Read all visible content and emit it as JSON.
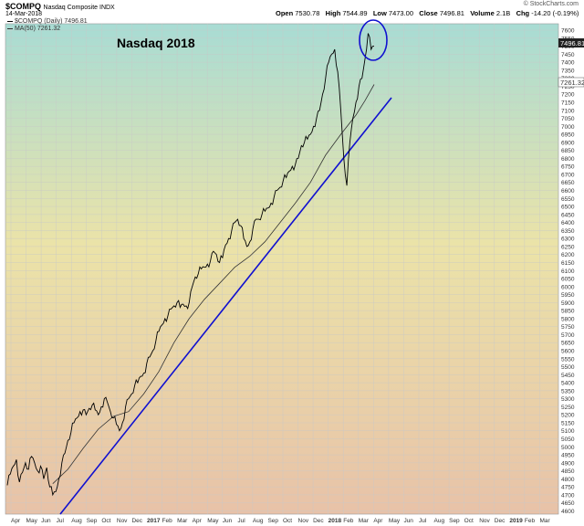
{
  "header": {
    "symbol": "$COMPQ",
    "name": "Nasdaq Composite INDX",
    "date": "14-Mar-2018",
    "open_label": "Open",
    "open": "7530.78",
    "high_label": "High",
    "high": "7544.89",
    "low_label": "Low",
    "low": "7473.00",
    "close_label": "Close",
    "close": "7496.81",
    "volume_label": "Volume",
    "volume": "2.1B",
    "chg_label": "Chg",
    "chg": "-14.20 (-0.19%)",
    "watermark": "© StockCharts.com"
  },
  "legend": {
    "price": "$COMPQ (Daily) 7496.81",
    "ma": "MA(50) 7261.32"
  },
  "annotation": "Nasdaq 2018",
  "price_tags": {
    "close": "7496.81",
    "ma": "7261.32"
  },
  "colors": {
    "price": "#000000",
    "ma": "#333333",
    "trendline": "#1010d0",
    "circle": "#1010d0",
    "bg_top": "#a8dcd4",
    "bg_mid": "#ebe3a8",
    "bg_bottom": "#e8c2a8"
  },
  "chart_data": {
    "type": "line",
    "y_ticks": [
      4600,
      4650,
      4700,
      4750,
      4800,
      4850,
      4900,
      4950,
      5000,
      5050,
      5100,
      5150,
      5200,
      5250,
      5300,
      5350,
      5400,
      5450,
      5500,
      5550,
      5600,
      5650,
      5700,
      5750,
      5800,
      5850,
      5900,
      5950,
      6000,
      6050,
      6100,
      6150,
      6200,
      6250,
      6300,
      6350,
      6400,
      6450,
      6500,
      6550,
      6600,
      6650,
      6700,
      6750,
      6800,
      6850,
      6900,
      6950,
      7000,
      7050,
      7100,
      7150,
      7200,
      7250,
      7300,
      7350,
      7400,
      7450,
      7500,
      7550,
      7600
    ],
    "ylim": [
      4580,
      7640
    ],
    "x_labels": [
      "Apr",
      "May",
      "Jun",
      "Jul",
      "Aug",
      "Sep",
      "Oct",
      "Nov",
      "Dec",
      "2017",
      "Feb",
      "Mar",
      "Apr",
      "May",
      "Jun",
      "Jul",
      "Aug",
      "Sep",
      "Oct",
      "Nov",
      "Dec",
      "2018",
      "Feb",
      "Mar",
      "Apr",
      "May",
      "Jun",
      "Jul",
      "Aug",
      "Sep",
      "Oct",
      "Nov",
      "Dec",
      "2019",
      "Feb",
      "Mar"
    ],
    "x_bold": [
      "2017",
      "2018",
      "2019"
    ],
    "price_series": [
      [
        0,
        4760
      ],
      [
        2,
        4830
      ],
      [
        4,
        4880
      ],
      [
        6,
        4920
      ],
      [
        8,
        4780
      ],
      [
        10,
        4840
      ],
      [
        12,
        4900
      ],
      [
        14,
        4860
      ],
      [
        16,
        4940
      ],
      [
        18,
        4900
      ],
      [
        20,
        4850
      ],
      [
        22,
        4880
      ],
      [
        24,
        4800
      ],
      [
        26,
        4870
      ],
      [
        28,
        4750
      ],
      [
        30,
        4700
      ],
      [
        32,
        4720
      ],
      [
        34,
        4800
      ],
      [
        36,
        4900
      ],
      [
        38,
        4960
      ],
      [
        40,
        5040
      ],
      [
        42,
        5090
      ],
      [
        44,
        5150
      ],
      [
        46,
        5180
      ],
      [
        48,
        5220
      ],
      [
        50,
        5230
      ],
      [
        52,
        5200
      ],
      [
        54,
        5240
      ],
      [
        56,
        5260
      ],
      [
        58,
        5230
      ],
      [
        60,
        5200
      ],
      [
        62,
        5250
      ],
      [
        64,
        5300
      ],
      [
        66,
        5280
      ],
      [
        68,
        5220
      ],
      [
        70,
        5180
      ],
      [
        72,
        5140
      ],
      [
        74,
        5100
      ],
      [
        76,
        5150
      ],
      [
        78,
        5250
      ],
      [
        80,
        5300
      ],
      [
        82,
        5330
      ],
      [
        84,
        5380
      ],
      [
        86,
        5400
      ],
      [
        88,
        5440
      ],
      [
        90,
        5460
      ],
      [
        92,
        5520
      ],
      [
        94,
        5560
      ],
      [
        96,
        5600
      ],
      [
        98,
        5660
      ],
      [
        100,
        5720
      ],
      [
        102,
        5760
      ],
      [
        104,
        5800
      ],
      [
        106,
        5820
      ],
      [
        108,
        5860
      ],
      [
        110,
        5880
      ],
      [
        112,
        5900
      ],
      [
        114,
        5870
      ],
      [
        116,
        5890
      ],
      [
        118,
        5880
      ],
      [
        120,
        5900
      ],
      [
        122,
        6000
      ],
      [
        124,
        6060
      ],
      [
        126,
        6080
      ],
      [
        128,
        6110
      ],
      [
        130,
        6120
      ],
      [
        132,
        6140
      ],
      [
        134,
        6160
      ],
      [
        136,
        6220
      ],
      [
        138,
        6200
      ],
      [
        140,
        6150
      ],
      [
        142,
        6180
      ],
      [
        144,
        6260
      ],
      [
        146,
        6300
      ],
      [
        148,
        6350
      ],
      [
        150,
        6400
      ],
      [
        152,
        6420
      ],
      [
        154,
        6380
      ],
      [
        156,
        6300
      ],
      [
        158,
        6250
      ],
      [
        160,
        6280
      ],
      [
        162,
        6360
      ],
      [
        164,
        6420
      ],
      [
        166,
        6420
      ],
      [
        168,
        6450
      ],
      [
        170,
        6470
      ],
      [
        172,
        6490
      ],
      [
        174,
        6520
      ],
      [
        176,
        6560
      ],
      [
        178,
        6600
      ],
      [
        180,
        6620
      ],
      [
        182,
        6660
      ],
      [
        184,
        6680
      ],
      [
        186,
        6720
      ],
      [
        188,
        6750
      ],
      [
        190,
        6760
      ],
      [
        192,
        6800
      ],
      [
        194,
        6880
      ],
      [
        196,
        6900
      ],
      [
        198,
        6920
      ],
      [
        200,
        6950
      ],
      [
        202,
        7000
      ],
      [
        204,
        7050
      ],
      [
        206,
        7100
      ],
      [
        208,
        7200
      ],
      [
        210,
        7300
      ],
      [
        212,
        7400
      ],
      [
        214,
        7450
      ],
      [
        216,
        7480
      ],
      [
        218,
        7340
      ],
      [
        220,
        7100
      ],
      [
        222,
        6800
      ],
      [
        224,
        6630
      ],
      [
        226,
        6900
      ],
      [
        228,
        7050
      ],
      [
        230,
        7150
      ],
      [
        232,
        7250
      ],
      [
        234,
        7300
      ],
      [
        236,
        7420
      ],
      [
        238,
        7580
      ],
      [
        240,
        7480
      ],
      [
        242,
        7500
      ]
    ],
    "ma_series": [
      [
        30,
        4770
      ],
      [
        40,
        4860
      ],
      [
        50,
        4990
      ],
      [
        60,
        5110
      ],
      [
        70,
        5190
      ],
      [
        80,
        5220
      ],
      [
        90,
        5330
      ],
      [
        100,
        5470
      ],
      [
        110,
        5650
      ],
      [
        120,
        5800
      ],
      [
        130,
        5920
      ],
      [
        140,
        6020
      ],
      [
        150,
        6120
      ],
      [
        160,
        6190
      ],
      [
        170,
        6280
      ],
      [
        180,
        6400
      ],
      [
        190,
        6520
      ],
      [
        200,
        6650
      ],
      [
        210,
        6820
      ],
      [
        220,
        6950
      ],
      [
        230,
        7070
      ],
      [
        236,
        7160
      ],
      [
        242,
        7261
      ]
    ]
  }
}
